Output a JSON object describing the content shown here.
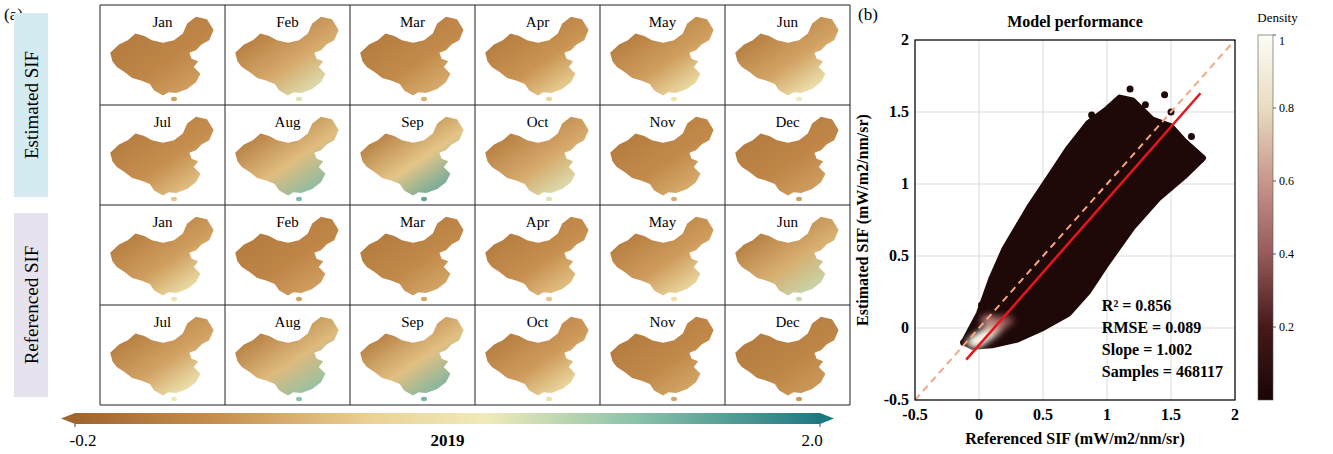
{
  "chart_data": [
    {
      "type": "map_grid",
      "label": "(a)",
      "categories": [
        "Jan",
        "Feb",
        "Mar",
        "Apr",
        "May",
        "Jun",
        "Jul",
        "Aug",
        "Sep",
        "Oct",
        "Nov",
        "Dec"
      ],
      "series": [
        {
          "name": "Estimated SIF",
          "values": [
            0.35,
            1.1,
            0.45,
            0.7,
            0.9,
            1.0,
            0.6,
            1.5,
            1.65,
            1.1,
            0.45,
            0.35
          ]
        },
        {
          "name": "Referenced SIF",
          "values": [
            0.9,
            0.35,
            0.4,
            0.6,
            0.85,
            1.2,
            1.0,
            1.45,
            1.55,
            0.85,
            0.4,
            0.3
          ]
        }
      ],
      "colorbar": {
        "range": [
          -0.2,
          2.0
        ],
        "ticks": [
          -0.2,
          {
            "value": 2.0,
            "label": "2.0"
          }
        ],
        "label": "2019"
      }
    },
    {
      "type": "scatter",
      "label": "(b)",
      "title": "Model performance",
      "x_label": "Referenced SIF (mW/m2/nm/sr)",
      "y_label": "Estimated SIF (mW/m2/nm/sr)",
      "xlim": [
        -0.5,
        2
      ],
      "ylim": [
        -0.5,
        2
      ],
      "xticks": [
        -0.5,
        0,
        0.5,
        1,
        1.5,
        2
      ],
      "yticks": [
        -0.5,
        0,
        0.5,
        1,
        1.5,
        2
      ],
      "grid": true,
      "color": "#1e0808",
      "envelope": {
        "x": [
          -0.12,
          0.0,
          0.1,
          0.2,
          0.4,
          0.55,
          0.7,
          0.85,
          1.0,
          1.1,
          1.2,
          1.35,
          1.5,
          1.6,
          1.75,
          1.6,
          1.4,
          1.2,
          1.0,
          0.85,
          0.7,
          0.5,
          0.3,
          0.1,
          -0.05
        ],
        "y": [
          -0.1,
          0.1,
          0.35,
          0.55,
          0.85,
          1.05,
          1.25,
          1.42,
          1.52,
          1.6,
          1.58,
          1.45,
          1.4,
          1.3,
          1.18,
          1.05,
          0.9,
          0.7,
          0.45,
          0.25,
          0.1,
          0.0,
          -0.08,
          -0.12,
          -0.13
        ]
      },
      "points": {
        "x": [
          1.73,
          1.62,
          1.18,
          1.5,
          -0.12,
          0.02,
          1.66,
          0.88,
          1.3,
          1.45
        ],
        "y": [
          1.17,
          1.22,
          1.66,
          1.5,
          -0.1,
          0.16,
          1.33,
          1.48,
          1.55,
          1.62
        ]
      },
      "density": {
        "x": [
          0.2,
          0.15,
          0.08,
          0.1,
          -0.03,
          0.05,
          0.0
        ],
        "y": [
          0.05,
          0.02,
          0.05,
          -0.02,
          -0.1,
          -0.05,
          -0.08
        ],
        "values": [
          0.35,
          0.45,
          0.5,
          0.65,
          0.8,
          0.9,
          1.0
        ]
      },
      "fit_line": {
        "x": [
          -0.1,
          1.73
        ],
        "y": [
          -0.22,
          1.63
        ],
        "color": "#e8141e"
      },
      "reference_line": {
        "x": [
          -0.5,
          2
        ],
        "y": [
          -0.5,
          2
        ],
        "color": "#f4a582",
        "line_style": "dashed"
      },
      "annotations": [
        "R² = 0.856",
        "RMSE = 0.089",
        "Slope = 1.002",
        "Samples = 468117"
      ],
      "colorbar": {
        "label": "Density",
        "range": [
          0,
          1
        ],
        "ticks": [
          0.2,
          0.4,
          0.6,
          0.8,
          1
        ]
      }
    }
  ]
}
